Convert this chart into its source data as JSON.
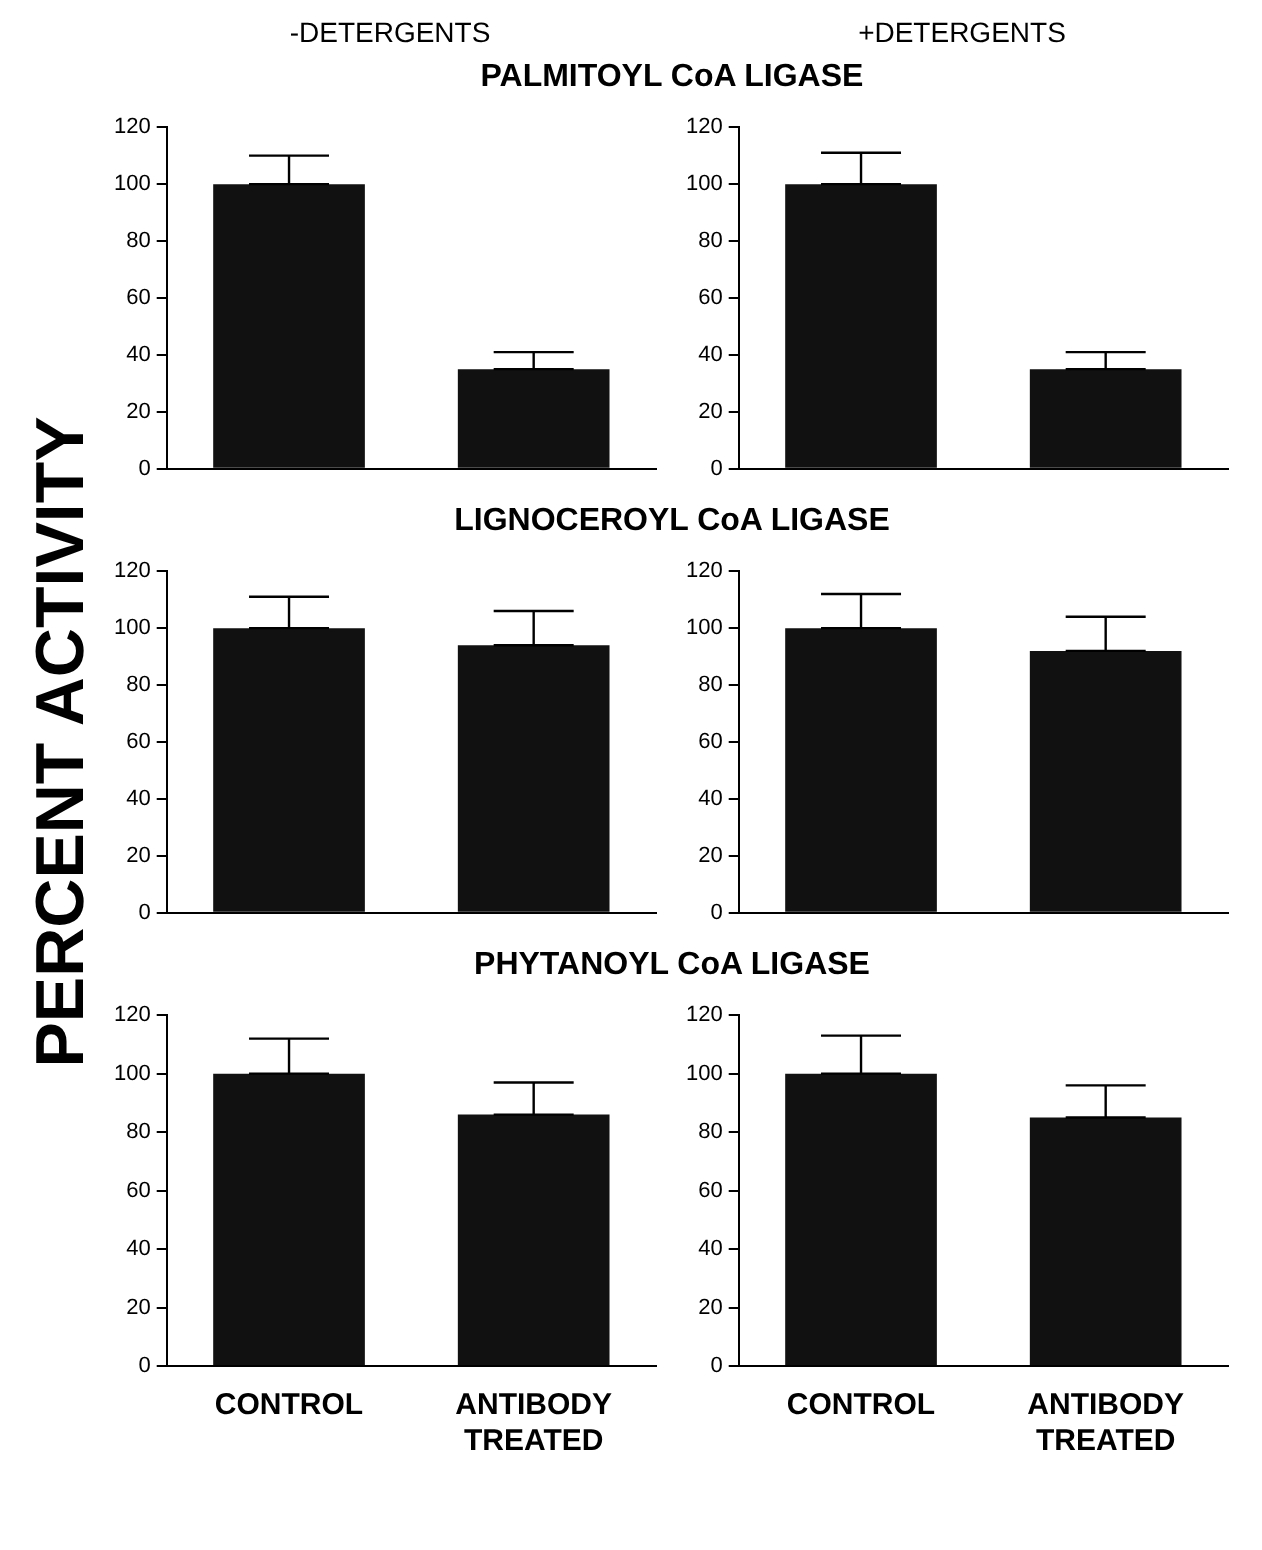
{
  "chart_data": [
    {
      "type": "bar",
      "title": "PALMITOYL CoA LIGASE",
      "ylabel": "PERCENT ACTIVITY",
      "annotations": [
        "-DETERGENTS"
      ],
      "categories": [
        null,
        null
      ],
      "values": [
        100,
        35
      ],
      "errors": [
        [
          100,
          110
        ],
        [
          35,
          41
        ]
      ],
      "color": "#111111",
      "ylim": [
        0,
        120
      ],
      "yticks": [
        0,
        20,
        40,
        60,
        80,
        100,
        120
      ],
      "tick_labels": "y"
    },
    {
      "type": "bar",
      "annotations": [
        "+DETERGENTS"
      ],
      "categories": [
        null,
        null
      ],
      "values": [
        100,
        35
      ],
      "errors": [
        [
          100,
          111
        ],
        [
          35,
          41
        ]
      ],
      "color": "#111111",
      "ylim": [
        0,
        120
      ],
      "yticks": [
        0,
        20,
        40,
        60,
        80,
        100,
        120
      ],
      "tick_labels": "y"
    },
    {
      "type": "bar",
      "title": "LIGNOCEROYL CoA LIGASE",
      "categories": [
        null,
        null
      ],
      "values": [
        100,
        94
      ],
      "errors": [
        [
          100,
          111
        ],
        [
          94,
          106
        ]
      ],
      "color": "#111111",
      "ylim": [
        0,
        120
      ],
      "yticks": [
        0,
        20,
        40,
        60,
        80,
        100,
        120
      ],
      "tick_labels": "y"
    },
    {
      "type": "bar",
      "categories": [
        null,
        null
      ],
      "values": [
        100,
        92
      ],
      "errors": [
        [
          100,
          112
        ],
        [
          92,
          104
        ]
      ],
      "color": "#111111",
      "ylim": [
        0,
        120
      ],
      "yticks": [
        0,
        20,
        40,
        60,
        80,
        100,
        120
      ],
      "tick_labels": "y"
    },
    {
      "type": "bar",
      "title": "PHYTANOYL CoA LIGASE",
      "categories": [
        "CONTROL",
        "ANTIBODY TREATED"
      ],
      "values": [
        100,
        86
      ],
      "errors": [
        [
          100,
          112
        ],
        [
          86,
          97
        ]
      ],
      "color": "#111111",
      "ylim": [
        0,
        120
      ],
      "yticks": [
        0,
        20,
        40,
        60,
        80,
        100,
        120
      ]
    },
    {
      "type": "bar",
      "categories": [
        "CONTROL",
        "ANTIBODY TREATED"
      ],
      "values": [
        100,
        85
      ],
      "errors": [
        [
          100,
          113
        ],
        [
          85,
          96
        ]
      ],
      "color": "#111111",
      "ylim": [
        0,
        120
      ],
      "yticks": [
        0,
        20,
        40,
        60,
        80,
        100,
        120
      ]
    }
  ]
}
